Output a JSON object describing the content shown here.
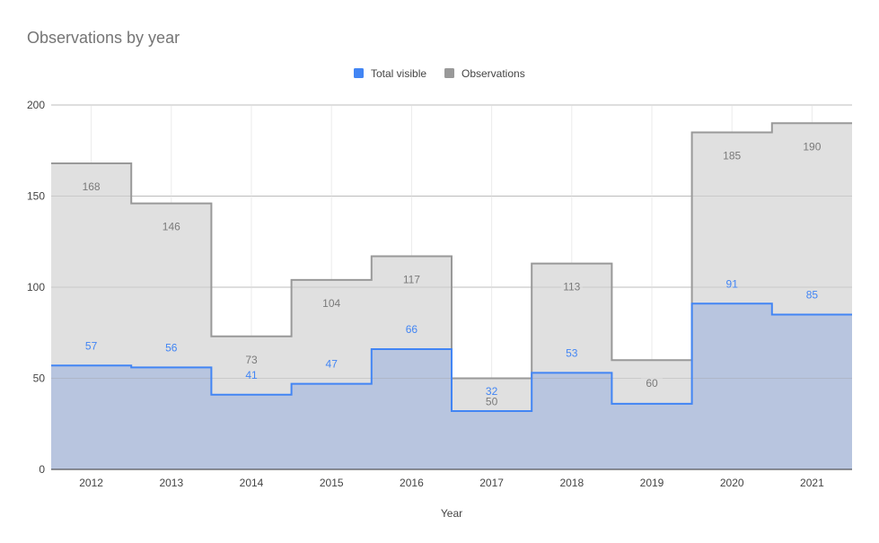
{
  "chart_data": {
    "type": "area",
    "title": "Observations by year",
    "xlabel": "Year",
    "ylabel": "",
    "categories": [
      "2012",
      "2013",
      "2014",
      "2015",
      "2016",
      "2017",
      "2018",
      "2019",
      "2020",
      "2021"
    ],
    "series": [
      {
        "name": "Total visible",
        "values": [
          57,
          56,
          41,
          47,
          66,
          32,
          53,
          36,
          91,
          85
        ],
        "color": "#4285f4",
        "fill": "#b8c5df"
      },
      {
        "name": "Observations",
        "values": [
          168,
          146,
          73,
          104,
          117,
          50,
          113,
          60,
          185,
          190
        ],
        "color": "#999999",
        "fill": "#e0e0e0"
      }
    ],
    "data_labels": {
      "Total visible": [
        "57",
        "56",
        "41",
        "47",
        "66",
        "32",
        "53",
        "",
        "91",
        "85"
      ],
      "Observations": [
        "168",
        "146",
        "73",
        "104",
        "117",
        "50",
        "113",
        "60",
        "185",
        "190"
      ]
    },
    "ylim": [
      0,
      200
    ],
    "yticks": [
      0,
      50,
      100,
      150,
      200
    ],
    "step": true,
    "grid": true,
    "legend_position": "top"
  }
}
